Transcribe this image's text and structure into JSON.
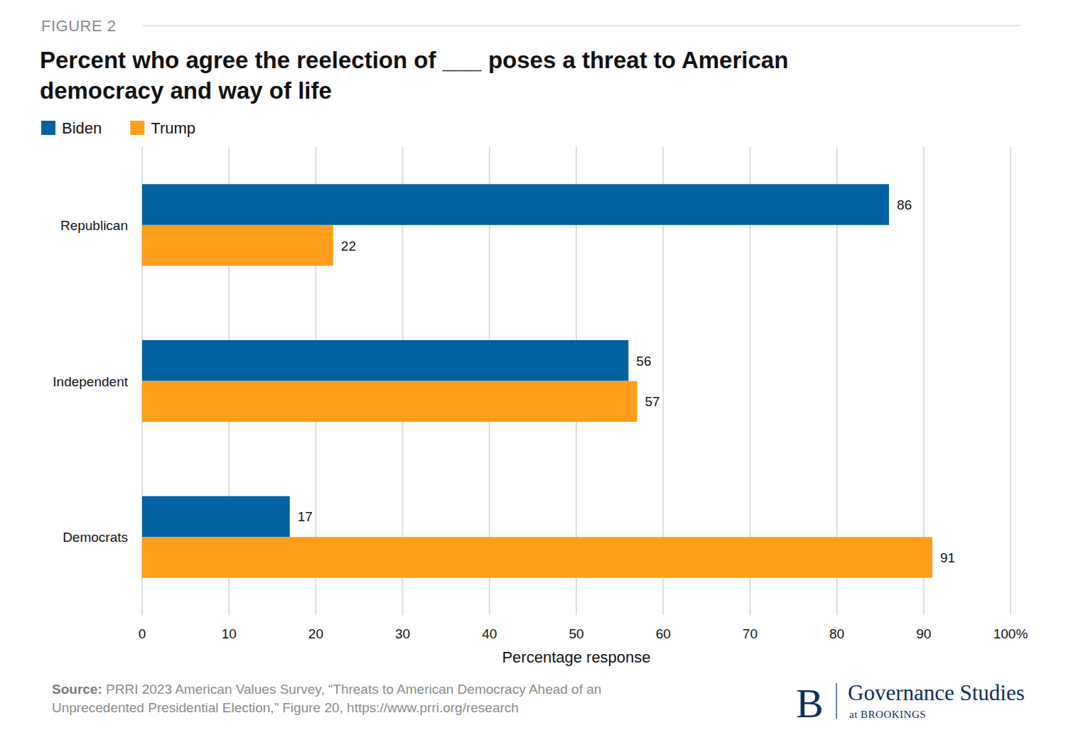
{
  "chart_data": {
    "type": "bar",
    "orientation": "horizontal",
    "figure_label": "FIGURE 2",
    "title": "Percent who agree the reelection of ___ poses a threat to American\ndemocracy and way of life",
    "categories": [
      "Republican",
      "Independent",
      "Democrats"
    ],
    "series": [
      {
        "name": "Biden",
        "color": "#0261a0",
        "values": [
          86,
          56,
          17
        ]
      },
      {
        "name": "Trump",
        "color": "#ff9e1b",
        "values": [
          22,
          57,
          91
        ]
      }
    ],
    "x_label": "Percentage response",
    "xlim": [
      0,
      100
    ],
    "xticks": [
      0,
      10,
      20,
      30,
      40,
      50,
      60,
      70,
      80,
      90,
      {
        "value": 100,
        "label": "100%"
      }
    ],
    "grid": true,
    "legend": "top-left",
    "data_labels": true,
    "source": {
      "label": "Source:",
      "lines": [
        "PRRI 2023 American Values Survey, “Threats to American Democracy Ahead of an",
        "Unprecedented Presidential Election,” Figure 20, https://www.prri.org/research"
      ]
    },
    "branding": {
      "logo": "B",
      "name": "Governance Studies",
      "sub": "at BROOKINGS"
    }
  }
}
